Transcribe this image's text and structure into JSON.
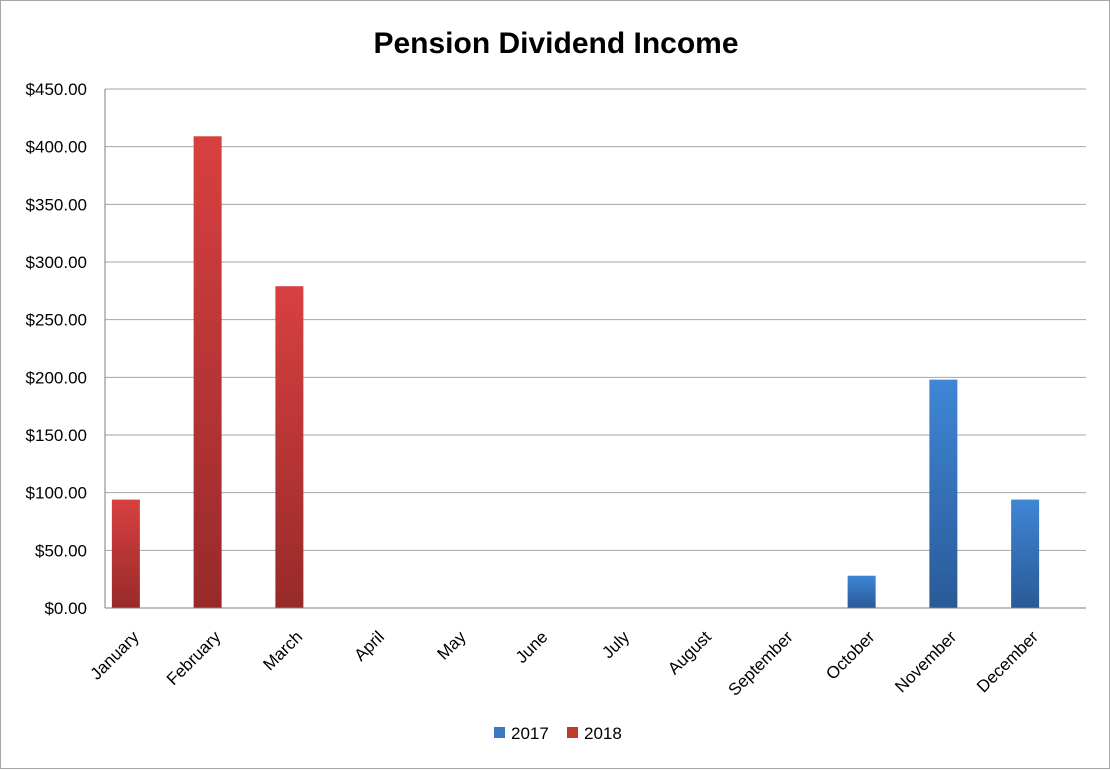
{
  "chart_data": {
    "type": "bar",
    "title": "Pension Dividend Income",
    "xlabel": "",
    "ylabel": "",
    "categories": [
      "January",
      "February",
      "March",
      "April",
      "May",
      "June",
      "July",
      "August",
      "September",
      "October",
      "November",
      "December"
    ],
    "series": [
      {
        "name": "2017",
        "color": "#3a78c4",
        "values": [
          0,
          0,
          0,
          0,
          0,
          0,
          0,
          0,
          0,
          28,
          198,
          94
        ]
      },
      {
        "name": "2018",
        "color": "#c0392b",
        "values": [
          94,
          409,
          279,
          0,
          0,
          0,
          0,
          0,
          0,
          0,
          0,
          0
        ]
      }
    ],
    "ylim": [
      0,
      450
    ],
    "yticks": [
      0,
      50,
      100,
      150,
      200,
      250,
      300,
      350,
      400,
      450
    ],
    "ytick_labels": [
      "$0.00",
      "$50.00",
      "$100.00",
      "$150.00",
      "$200.00",
      "$250.00",
      "$300.00",
      "$350.00",
      "$400.00",
      "$450.00"
    ],
    "grid": true,
    "legend_position": "bottom"
  }
}
